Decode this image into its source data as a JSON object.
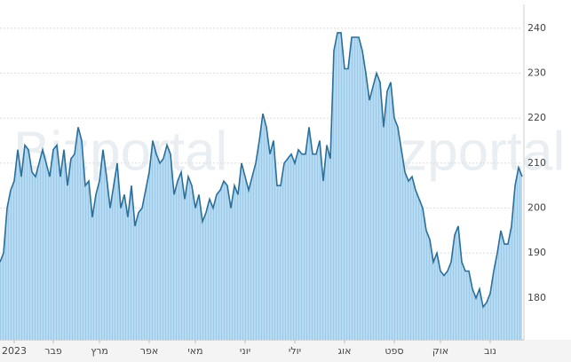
{
  "chart_data": {
    "type": "area",
    "watermark": "Bizportal",
    "series": [
      {
        "name": null,
        "color": "#2b6f9a",
        "fill": "#a9d3ef",
        "values": [
          188,
          190,
          200,
          204,
          206,
          213,
          207,
          214,
          213,
          208,
          207,
          210,
          213,
          210,
          207,
          213,
          214,
          207,
          213,
          205,
          211,
          212,
          218,
          215,
          205,
          206,
          198,
          203,
          206,
          213,
          207,
          200,
          205,
          210,
          200,
          203,
          198,
          205,
          196,
          199,
          200,
          204,
          208,
          215,
          212,
          210,
          211,
          214,
          212,
          203,
          206,
          208,
          202,
          207,
          205,
          200,
          203,
          197,
          199,
          202,
          200,
          203,
          204,
          206,
          205,
          200,
          205,
          203,
          210,
          207,
          204,
          207,
          210,
          215,
          221,
          218,
          212,
          215,
          205,
          205,
          210,
          211,
          212,
          210,
          213,
          212,
          212,
          218,
          212,
          212,
          215,
          206,
          214,
          211,
          235,
          239,
          239,
          231,
          231,
          238,
          238,
          238,
          235,
          230,
          224,
          227,
          230,
          228,
          218,
          226,
          228,
          220,
          218,
          213,
          208,
          206,
          207,
          204,
          202,
          200,
          195,
          193,
          188,
          190,
          186,
          185,
          186,
          188,
          194,
          196,
          188,
          186,
          186,
          182,
          180,
          182,
          178,
          179,
          181,
          186,
          190,
          195,
          192,
          192,
          196,
          205,
          209,
          207
        ]
      }
    ],
    "x_labels": [
      {
        "value": 4,
        "label": "2023"
      },
      {
        "value": 15,
        "label": "פבר"
      },
      {
        "value": 28,
        "label": "מרץ"
      },
      {
        "value": 42,
        "label": "אפר"
      },
      {
        "value": 55,
        "label": "מאי"
      },
      {
        "value": 69,
        "label": "יוני"
      },
      {
        "value": 83,
        "label": "יולי"
      },
      {
        "value": 97,
        "label": "אוג"
      },
      {
        "value": 111,
        "label": "ספט"
      },
      {
        "value": 124,
        "label": "אוק"
      },
      {
        "value": 138,
        "label": "נוב"
      }
    ],
    "ylim": [
      170.7,
      245.3
    ],
    "yticks": [
      180,
      190,
      200,
      210,
      220,
      230,
      240
    ],
    "grid": true,
    "y_axis_side": "right"
  }
}
